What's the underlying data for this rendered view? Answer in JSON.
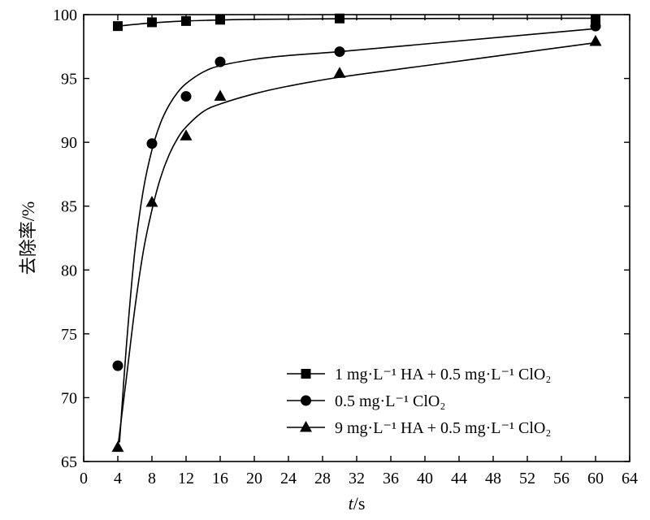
{
  "chart_data": {
    "type": "scatter",
    "title": "",
    "xlabel_italic": "t",
    "xlabel_unit": "/s",
    "ylabel": "去除率/%",
    "xlim": [
      0,
      64
    ],
    "ylim": [
      65,
      100
    ],
    "x_ticks": [
      0,
      4,
      8,
      12,
      16,
      20,
      24,
      28,
      32,
      36,
      40,
      44,
      48,
      52,
      56,
      60,
      64
    ],
    "y_ticks": [
      65,
      70,
      75,
      80,
      85,
      90,
      95,
      100
    ],
    "grid": false,
    "legend_position": "bottom-right",
    "series": [
      {
        "name": "1 mg·L⁻¹  HA + 0.5 mg·L⁻¹  ClO₂",
        "marker": "square",
        "x": [
          4,
          8,
          12,
          16,
          30,
          60
        ],
        "y": [
          99.1,
          99.4,
          99.5,
          99.6,
          99.7,
          99.6
        ],
        "curve": [
          [
            4,
            99.1
          ],
          [
            8,
            99.35
          ],
          [
            12,
            99.5
          ],
          [
            16,
            99.58
          ],
          [
            20,
            99.63
          ],
          [
            30,
            99.68
          ],
          [
            45,
            99.7
          ],
          [
            60,
            99.72
          ]
        ]
      },
      {
        "name": "0.5 mg·L⁻¹  ClO₂",
        "marker": "circle",
        "x": [
          4,
          8,
          12,
          16,
          30,
          60
        ],
        "y": [
          72.5,
          89.9,
          93.6,
          96.3,
          97.1,
          99.1
        ],
        "curve": [
          [
            4.2,
            66.5
          ],
          [
            5,
            74
          ],
          [
            6,
            81.5
          ],
          [
            7,
            86.3
          ],
          [
            8,
            89.4
          ],
          [
            9,
            91.5
          ],
          [
            10,
            92.9
          ],
          [
            11,
            93.9
          ],
          [
            12,
            94.6
          ],
          [
            14,
            95.5
          ],
          [
            16,
            96.0
          ],
          [
            20,
            96.5
          ],
          [
            24,
            96.8
          ],
          [
            30,
            97.1
          ],
          [
            40,
            97.7
          ],
          [
            50,
            98.3
          ],
          [
            60,
            98.9
          ]
        ]
      },
      {
        "name": "9 mg·L⁻¹  HA + 0.5 mg·L⁻¹  ClO₂",
        "marker": "triangle",
        "x": [
          4,
          8,
          12,
          16,
          30,
          60
        ],
        "y": [
          66.1,
          85.3,
          90.5,
          93.6,
          95.4,
          97.9
        ],
        "curve": [
          [
            4,
            66.1
          ],
          [
            5,
            71.5
          ],
          [
            6,
            77
          ],
          [
            7,
            81.5
          ],
          [
            8,
            84.7
          ],
          [
            9,
            87.2
          ],
          [
            10,
            89.0
          ],
          [
            11,
            90.3
          ],
          [
            12,
            91.2
          ],
          [
            14,
            92.4
          ],
          [
            16,
            93.0
          ],
          [
            20,
            93.8
          ],
          [
            24,
            94.4
          ],
          [
            30,
            95.1
          ],
          [
            40,
            96.0
          ],
          [
            50,
            96.9
          ],
          [
            60,
            97.8
          ]
        ]
      }
    ]
  }
}
